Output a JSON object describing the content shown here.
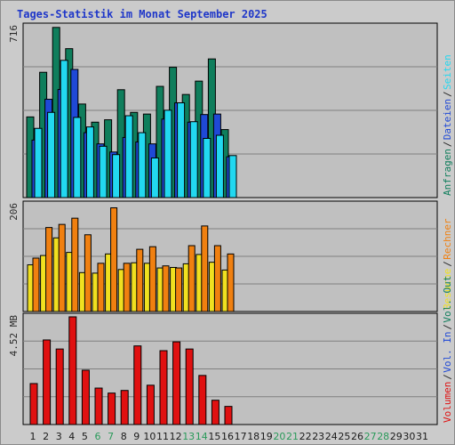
{
  "title": "Tages-Statistik im Monat September 2025",
  "chart_data": [
    {
      "type": "bar",
      "ymax_label": "716",
      "ylim": [
        0,
        716
      ],
      "grid": true,
      "legend": [
        {
          "label": "Anfragen",
          "color": "#0f7e5c"
        },
        {
          "label": "Dateien",
          "color": "#1f49d6"
        },
        {
          "label": "Seiten",
          "color": "#22d8f0"
        }
      ],
      "categories": [
        "1",
        "2",
        "3",
        "4",
        "5",
        "6",
        "7",
        "8",
        "9",
        "10",
        "11",
        "12",
        "13",
        "14",
        "15",
        "16",
        "17",
        "18",
        "19",
        "20",
        "21",
        "22",
        "23",
        "24",
        "25",
        "26",
        "27",
        "28",
        "29",
        "30",
        "31"
      ],
      "series": [
        {
          "name": "Anfragen",
          "color": "#0f7e5c",
          "values": [
            338,
            525,
            713,
            624,
            392,
            316,
            326,
            452,
            357,
            350,
            466,
            546,
            432,
            488,
            581,
            285,
            0,
            0,
            0,
            0,
            0,
            0,
            0,
            0,
            0,
            0,
            0,
            0,
            0,
            0,
            0
          ]
        },
        {
          "name": "Dateien",
          "color": "#1f49d6",
          "values": [
            241,
            412,
            453,
            537,
            272,
            225,
            191,
            252,
            233,
            225,
            329,
            397,
            316,
            348,
            350,
            171,
            0,
            0,
            0,
            0,
            0,
            0,
            0,
            0,
            0,
            0,
            0,
            0,
            0,
            0,
            0
          ]
        },
        {
          "name": "Seiten",
          "color": "#22d8f0",
          "values": [
            290,
            357,
            575,
            336,
            296,
            215,
            180,
            343,
            272,
            166,
            366,
            397,
            318,
            248,
            261,
            176,
            0,
            0,
            0,
            0,
            0,
            0,
            0,
            0,
            0,
            0,
            0,
            0,
            0,
            0,
            0
          ]
        }
      ]
    },
    {
      "type": "bar",
      "ymax_label": "206",
      "ylim": [
        0,
        206
      ],
      "grid": true,
      "legend": [
        {
          "label": "Besuche",
          "color": "#f0e020"
        },
        {
          "label": "Rechner",
          "color": "#f08010"
        }
      ],
      "categories": [
        "1",
        "2",
        "3",
        "4",
        "5",
        "6",
        "7",
        "8",
        "9",
        "10",
        "11",
        "12",
        "13",
        "14",
        "15",
        "16",
        "17",
        "18",
        "19",
        "20",
        "21",
        "22",
        "23",
        "24",
        "25",
        "26",
        "27",
        "28",
        "29",
        "30",
        "31"
      ],
      "series": [
        {
          "name": "Besuche",
          "color": "#f0e020",
          "values": [
            90,
            108,
            142,
            114,
            75,
            74,
            111,
            81,
            94,
            93,
            84,
            85,
            92,
            110,
            95,
            80,
            0,
            0,
            0,
            0,
            0,
            0,
            0,
            0,
            0,
            0,
            0,
            0,
            0,
            0,
            0
          ]
        },
        {
          "name": "Rechner",
          "color": "#f08010",
          "values": [
            103,
            162,
            168,
            180,
            148,
            93,
            200,
            93,
            120,
            125,
            88,
            84,
            127,
            165,
            127,
            111,
            0,
            0,
            0,
            0,
            0,
            0,
            0,
            0,
            0,
            0,
            0,
            0,
            0,
            0,
            0
          ]
        }
      ]
    },
    {
      "type": "bar",
      "ymax_label": "4.52 MB",
      "ylim": [
        0,
        4.52
      ],
      "grid": true,
      "legend": [
        {
          "label": "Volumen",
          "color": "#e01010"
        },
        {
          "label": "Vol. In",
          "color": "#1f49d6"
        },
        {
          "label": "Vol. Out",
          "color": "#0f7e5c"
        }
      ],
      "categories": [
        "1",
        "2",
        "3",
        "4",
        "5",
        "6",
        "7",
        "8",
        "9",
        "10",
        "11",
        "12",
        "13",
        "14",
        "15",
        "16",
        "17",
        "18",
        "19",
        "20",
        "21",
        "22",
        "23",
        "24",
        "25",
        "26",
        "27",
        "28",
        "29",
        "30",
        "31"
      ],
      "series": [
        {
          "name": "Volumen",
          "color": "#e01010",
          "values": [
            1.72,
            3.55,
            3.17,
            4.52,
            2.28,
            1.53,
            1.32,
            1.43,
            3.3,
            1.65,
            3.1,
            3.47,
            3.17,
            2.06,
            1.02,
            0.76,
            0,
            0,
            0,
            0,
            0,
            0,
            0,
            0,
            0,
            0,
            0,
            0,
            0,
            0,
            0
          ]
        }
      ]
    }
  ],
  "colors": {
    "weekend_label": "#2a9a5a",
    "weekday_label": "#1a1a1a"
  },
  "weekend_days": [
    "6",
    "7",
    "13",
    "14",
    "20",
    "21",
    "27",
    "28"
  ]
}
